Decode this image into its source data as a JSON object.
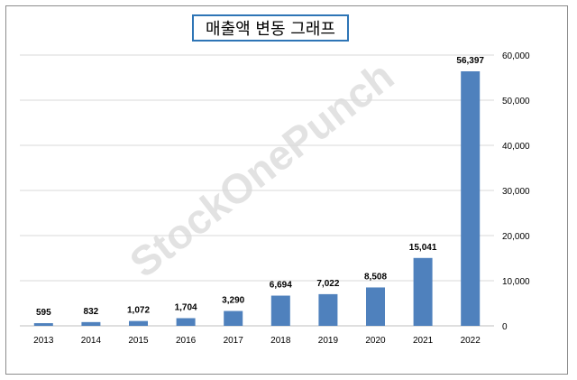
{
  "chart_data": {
    "type": "bar",
    "title": "매출액 변동 그래프",
    "watermark": "StockOnePunch",
    "categories": [
      "2013",
      "2014",
      "2015",
      "2016",
      "2017",
      "2018",
      "2019",
      "2020",
      "2021",
      "2022"
    ],
    "values": [
      595,
      832,
      1072,
      1704,
      3290,
      6694,
      7022,
      8508,
      15041,
      56397
    ],
    "value_labels": [
      "595",
      "832",
      "1,072",
      "1,704",
      "3,290",
      "6,694",
      "7,022",
      "8,508",
      "15,041",
      "56,397"
    ],
    "ylim": [
      0,
      60000
    ],
    "y_ticks": [
      0,
      10000,
      20000,
      30000,
      40000,
      50000,
      60000
    ],
    "y_tick_labels": [
      "0",
      "10,000",
      "20,000",
      "30,000",
      "40,000",
      "50,000",
      "60,000"
    ],
    "y_axis_side": "right",
    "grid": true,
    "legend": "none",
    "xlabel": "",
    "ylabel": "",
    "colors": {
      "bar": "#4f81bd",
      "grid": "#d9d9d9",
      "title_border": "#2e75b6"
    }
  }
}
